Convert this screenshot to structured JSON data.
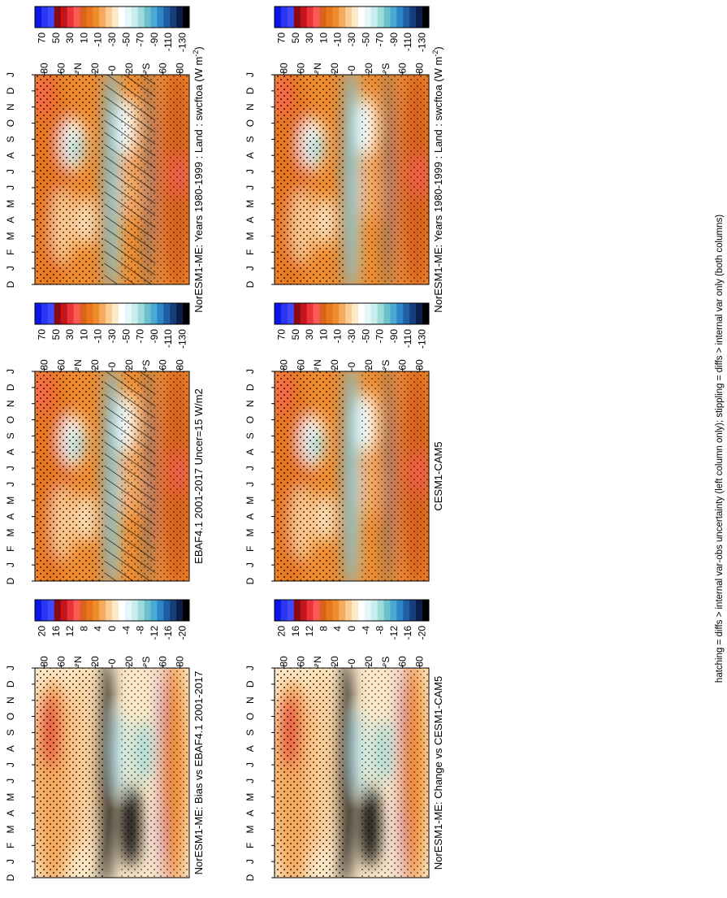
{
  "figure": {
    "footer": "hatching = diffs > internal var-obs uncertainty (left column only); stippling = diffs > internal var only (both columns)",
    "colors": {
      "abs_scale": [
        "#0a15e8",
        "#2a36f0",
        "#3f4aff",
        "#8b0a12",
        "#c4141c",
        "#e8343a",
        "#fc5a55",
        "#d9621e",
        "#e8761b",
        "#f08c2e",
        "#f6aa5e",
        "#fbcd97",
        "#fde9c8",
        "#ffffff",
        "#e6f6f6",
        "#c9ecec",
        "#9fdada",
        "#6bc1cc",
        "#4ba8d2",
        "#2c86c8",
        "#1f5fa6",
        "#173e7a",
        "#0b1f4a",
        "#000000"
      ],
      "diff_scale": [
        "#0a15e8",
        "#2a36f0",
        "#3f4aff",
        "#8b0a12",
        "#c4141c",
        "#e8343a",
        "#fc5a55",
        "#d9621e",
        "#e8761b",
        "#f08c2e",
        "#f6aa5e",
        "#fbcd97",
        "#fde9c8",
        "#ffffff",
        "#e6f6f6",
        "#c9ecec",
        "#9fdada",
        "#6bc1cc",
        "#4ba8d2",
        "#2c86c8",
        "#1f5fa6",
        "#173e7a",
        "#0b1f4a",
        "#000000"
      ]
    }
  },
  "chart_data": [
    {
      "type": "heatmap",
      "panel": "left-top",
      "title": "NorESM1-ME: Years 1980-1999 : Land : swcftoa (W m",
      "title_sup": "-2",
      "title_end": ")",
      "x": [
        "D",
        "J",
        "F",
        "M",
        "A",
        "M",
        "J",
        "J",
        "A",
        "S",
        "O",
        "N",
        "D",
        "J"
      ],
      "y": [
        "80",
        "60",
        "°N",
        "20",
        "0",
        "20",
        "°S",
        "60",
        "80"
      ],
      "colorbar_labels": [
        "70",
        "50",
        "30",
        "10",
        "-10",
        "-30",
        "-50",
        "-70",
        "-90",
        "-110",
        "-130"
      ],
      "scale": "abs",
      "hatching": true,
      "stippling": true
    },
    {
      "type": "heatmap",
      "panel": "right-top",
      "title": "NorESM1-ME: Years 1980-1999 : Land : swcftoa (W m",
      "title_sup": "-2",
      "title_end": ")",
      "x": [
        "D",
        "J",
        "F",
        "M",
        "A",
        "M",
        "J",
        "J",
        "A",
        "S",
        "O",
        "N",
        "D",
        "J"
      ],
      "y": [
        "80",
        "60",
        "°N",
        "20",
        "0",
        "20",
        "°S",
        "60",
        "80"
      ],
      "colorbar_labels": [
        "70",
        "50",
        "30",
        "10",
        "-10",
        "-30",
        "-50",
        "-70",
        "-90",
        "-110",
        "-130"
      ],
      "scale": "abs",
      "hatching": false,
      "stippling": true
    },
    {
      "type": "heatmap",
      "panel": "left-middle",
      "title": "EBAF4.1 2001-2017 Uncer=15 W/m2",
      "title_sup": "",
      "title_end": "",
      "x": [
        "D",
        "J",
        "F",
        "M",
        "A",
        "M",
        "J",
        "J",
        "A",
        "S",
        "O",
        "N",
        "D",
        "J"
      ],
      "y": [
        "80",
        "60",
        "°N",
        "20",
        "0",
        "20",
        "°S",
        "60",
        "80"
      ],
      "colorbar_labels": [
        "70",
        "50",
        "30",
        "10",
        "-10",
        "-30",
        "-50",
        "-70",
        "-90",
        "-110",
        "-130"
      ],
      "scale": "abs",
      "hatching": true,
      "stippling": true
    },
    {
      "type": "heatmap",
      "panel": "right-middle",
      "title": "CESM1-CAM5",
      "title_sup": "",
      "title_end": "",
      "x": [
        "D",
        "J",
        "F",
        "M",
        "A",
        "M",
        "J",
        "J",
        "A",
        "S",
        "O",
        "N",
        "D",
        "J"
      ],
      "y": [
        "80",
        "60",
        "°N",
        "20",
        "0",
        "20",
        "°S",
        "60",
        "80"
      ],
      "colorbar_labels": [
        "70",
        "50",
        "30",
        "10",
        "-10",
        "-30",
        "-50",
        "-70",
        "-90",
        "-110",
        "-130"
      ],
      "scale": "abs",
      "hatching": false,
      "stippling": true
    },
    {
      "type": "heatmap",
      "panel": "left-bottom",
      "title": "NorESM1-ME: Bias vs EBAF4.1 2001-2017",
      "title_sup": "",
      "title_end": "",
      "x": [
        "D",
        "J",
        "F",
        "M",
        "A",
        "M",
        "J",
        "J",
        "A",
        "S",
        "O",
        "N",
        "D",
        "J"
      ],
      "y": [
        "80",
        "60",
        "°N",
        "20",
        "0",
        "20",
        "°S",
        "60",
        "80"
      ],
      "colorbar_labels": [
        "20",
        "16",
        "12",
        "8",
        "4",
        "0",
        "-4",
        "-8",
        "-12",
        "-16",
        "-20"
      ],
      "scale": "diff",
      "hatching": false,
      "stippling": true
    },
    {
      "type": "heatmap",
      "panel": "right-bottom",
      "title": "NorESM1-ME: Change vs CESM1-CAM5",
      "title_sup": "",
      "title_end": "",
      "x": [
        "D",
        "J",
        "F",
        "M",
        "A",
        "M",
        "J",
        "J",
        "A",
        "S",
        "O",
        "N",
        "D",
        "J"
      ],
      "y": [
        "80",
        "60",
        "°N",
        "20",
        "0",
        "20",
        "°S",
        "60",
        "80"
      ],
      "colorbar_labels": [
        "20",
        "16",
        "12",
        "8",
        "4",
        "0",
        "-4",
        "-8",
        "-12",
        "-16",
        "-20"
      ],
      "scale": "diff",
      "hatching": false,
      "stippling": true
    }
  ]
}
